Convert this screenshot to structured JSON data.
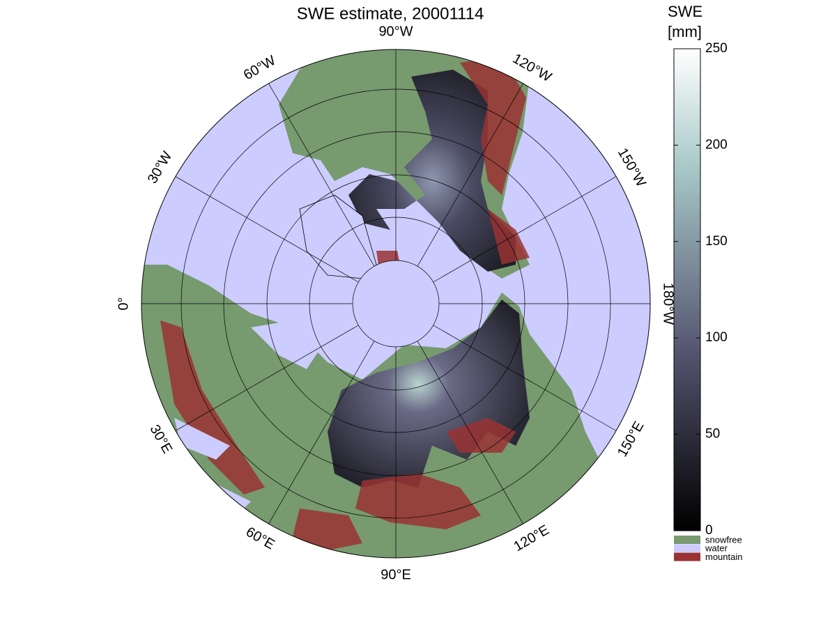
{
  "title": "SWE estimate, 20001114",
  "longitude_labels": [
    "90°W",
    "120°W",
    "150°W",
    "180°W",
    "150°E",
    "120°E",
    "90°E",
    "60°E",
    "30°E",
    "0°",
    "30°W",
    "60°W"
  ],
  "colorbar": {
    "label": [
      "SWE",
      "[mm]"
    ],
    "lim": [
      0,
      250
    ],
    "ticks": [
      0,
      50,
      100,
      150,
      200,
      250
    ]
  },
  "legend": [
    {
      "name": "snowfree",
      "color": "#779a6f"
    },
    {
      "name": "water",
      "color": "#ccccff"
    },
    {
      "name": "mountain",
      "color": "#993333"
    }
  ]
}
